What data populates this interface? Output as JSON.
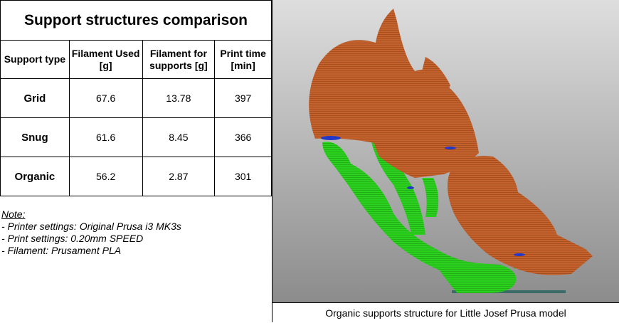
{
  "title": "Support structures comparison",
  "columns": [
    "Support type",
    "Filament Used [g]",
    "Filament for supports [g]",
    "Print time [min]"
  ],
  "rows": [
    {
      "type": "Grid",
      "filament_used": "67.6",
      "filament_supports": "13.78",
      "print_time": "397"
    },
    {
      "type": "Snug",
      "filament_used": "61.6",
      "filament_supports": "8.45",
      "print_time": "366"
    },
    {
      "type": "Organic",
      "filament_used": "56.2",
      "filament_supports": "2.87",
      "print_time": "301"
    }
  ],
  "notes": {
    "heading": "Note:",
    "lines": [
      "- Printer settings: Original Prusa i3 MK3s",
      "- Print settings: 0.20mm SPEED",
      "- Filament: Prusament PLA"
    ]
  },
  "caption": "Organic supports structure for Little Josef Prusa model",
  "colors": {
    "model": "#c4622d",
    "supports": "#2bd11e",
    "bed": "#3a6b67"
  }
}
